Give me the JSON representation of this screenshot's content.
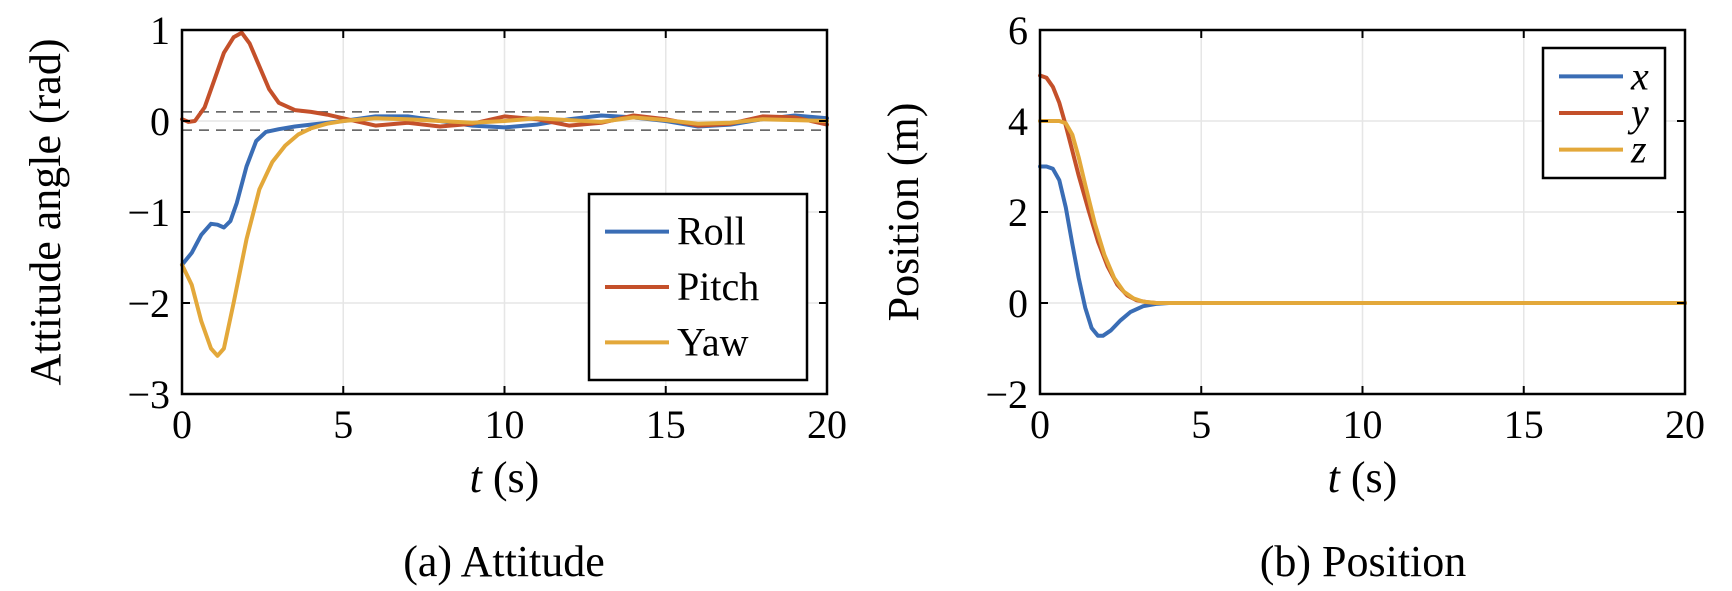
{
  "colors": {
    "blue": "#3A6DB5",
    "red": "#C4502A",
    "yellow": "#E3A83A",
    "grid": "#e6e6e6",
    "dash": "#555555"
  },
  "chart_data": [
    {
      "type": "line",
      "caption": "(a) Attitude",
      "xlabel_var": "t",
      "xlabel_unit": "(s)",
      "ylabel": "Attitude angle (rad)",
      "xlim": [
        0,
        20
      ],
      "ylim": [
        -3,
        1
      ],
      "xticks": [
        "0",
        "5",
        "10",
        "15",
        "20"
      ],
      "yticks": [
        "1",
        "0",
        "−1",
        "−2",
        "−3"
      ],
      "grid": true,
      "legend_position": "bottom-right",
      "legend_italic": false,
      "reference_lines": [
        0.1,
        -0.1
      ],
      "series": [
        {
          "name": "Roll",
          "color": "#3A6DB5",
          "x": [
            0,
            0.3,
            0.6,
            0.9,
            1.1,
            1.3,
            1.5,
            1.7,
            2.0,
            2.3,
            2.6,
            3.0,
            3.5,
            4.0,
            5.0,
            6.0,
            7.0,
            8.0,
            9.0,
            10.0,
            11.0,
            12.0,
            13.0,
            14.0,
            15.0,
            16.0,
            17.0,
            18.0,
            19.0,
            20.0
          ],
          "y": [
            -1.58,
            -1.45,
            -1.25,
            -1.13,
            -1.14,
            -1.17,
            -1.1,
            -0.9,
            -0.5,
            -0.22,
            -0.12,
            -0.09,
            -0.06,
            -0.04,
            0.0,
            0.05,
            0.05,
            0.0,
            -0.05,
            -0.07,
            -0.04,
            0.02,
            0.06,
            0.04,
            0.0,
            -0.06,
            -0.04,
            0.02,
            0.06,
            0.03
          ]
        },
        {
          "name": "Pitch",
          "color": "#C4502A",
          "x": [
            0,
            0.2,
            0.4,
            0.7,
            1.0,
            1.3,
            1.6,
            1.85,
            2.1,
            2.4,
            2.7,
            3.0,
            3.5,
            4.0,
            4.5,
            5.0,
            5.5,
            6.0,
            7.0,
            8.0,
            9.0,
            10.0,
            11.0,
            12.0,
            13.0,
            14.0,
            15.0,
            16.0,
            17.0,
            18.0,
            19.0,
            20.0
          ],
          "y": [
            0.02,
            -0.01,
            0.0,
            0.15,
            0.45,
            0.75,
            0.92,
            0.97,
            0.85,
            0.6,
            0.35,
            0.2,
            0.12,
            0.1,
            0.07,
            0.03,
            -0.01,
            -0.05,
            -0.02,
            -0.06,
            -0.03,
            0.05,
            0.02,
            -0.05,
            -0.02,
            0.06,
            0.02,
            -0.05,
            -0.03,
            0.05,
            0.04,
            -0.04
          ]
        },
        {
          "name": "Yaw",
          "color": "#E3A83A",
          "x": [
            0,
            0.3,
            0.6,
            0.9,
            1.1,
            1.3,
            1.6,
            2.0,
            2.4,
            2.8,
            3.2,
            3.6,
            4.0,
            4.5,
            5.0,
            6.0,
            7.0,
            8.0,
            9.0,
            10.0,
            11.0,
            12.0,
            13.0,
            14.0,
            15.0,
            16.0,
            17.0,
            18.0,
            19.0,
            20.0
          ],
          "y": [
            -1.58,
            -1.8,
            -2.2,
            -2.5,
            -2.58,
            -2.5,
            -2.0,
            -1.3,
            -0.75,
            -0.45,
            -0.27,
            -0.15,
            -0.08,
            -0.03,
            0.0,
            0.03,
            0.02,
            0.0,
            -0.02,
            0.0,
            0.03,
            0.01,
            -0.01,
            0.04,
            0.01,
            -0.03,
            -0.02,
            0.02,
            0.01,
            0.0
          ]
        }
      ]
    },
    {
      "type": "line",
      "caption": "(b) Position",
      "xlabel_var": "t",
      "xlabel_unit": "(s)",
      "ylabel": "Position (m)",
      "xlim": [
        0,
        20
      ],
      "ylim": [
        -2,
        6
      ],
      "xticks": [
        "0",
        "5",
        "10",
        "15",
        "20"
      ],
      "yticks": [
        "6",
        "4",
        "2",
        "0",
        "−2"
      ],
      "grid": true,
      "legend_position": "top-right",
      "legend_italic": true,
      "series": [
        {
          "name": "x",
          "color": "#3A6DB5",
          "x": [
            0,
            0.2,
            0.4,
            0.6,
            0.8,
            1.0,
            1.2,
            1.4,
            1.6,
            1.8,
            1.95,
            2.2,
            2.5,
            2.8,
            3.2,
            3.6,
            4.0,
            5.0,
            10.0,
            20.0
          ],
          "y": [
            3.0,
            3.0,
            2.95,
            2.7,
            2.1,
            1.3,
            0.55,
            -0.1,
            -0.55,
            -0.72,
            -0.72,
            -0.6,
            -0.38,
            -0.2,
            -0.07,
            -0.02,
            0.0,
            0.0,
            0.0,
            0.0
          ]
        },
        {
          "name": "y",
          "color": "#C4502A",
          "x": [
            0,
            0.2,
            0.4,
            0.6,
            0.8,
            1.0,
            1.2,
            1.5,
            1.8,
            2.1,
            2.4,
            2.7,
            3.0,
            3.3,
            3.6,
            4.0,
            5.0,
            10.0,
            20.0
          ],
          "y": [
            5.0,
            4.95,
            4.75,
            4.4,
            3.9,
            3.35,
            2.8,
            2.05,
            1.35,
            0.8,
            0.4,
            0.17,
            0.06,
            0.02,
            0.0,
            0.0,
            0.0,
            0.0,
            0.0
          ]
        },
        {
          "name": "z",
          "color": "#E3A83A",
          "x": [
            0,
            0.3,
            0.6,
            0.8,
            1.0,
            1.2,
            1.4,
            1.7,
            2.0,
            2.3,
            2.6,
            2.9,
            3.2,
            3.6,
            4.0,
            5.0,
            10.0,
            20.0
          ],
          "y": [
            4.0,
            4.0,
            4.0,
            3.95,
            3.7,
            3.2,
            2.6,
            1.75,
            1.05,
            0.55,
            0.25,
            0.1,
            0.03,
            0.0,
            0.0,
            0.0,
            0.0,
            0.0
          ]
        }
      ]
    }
  ]
}
